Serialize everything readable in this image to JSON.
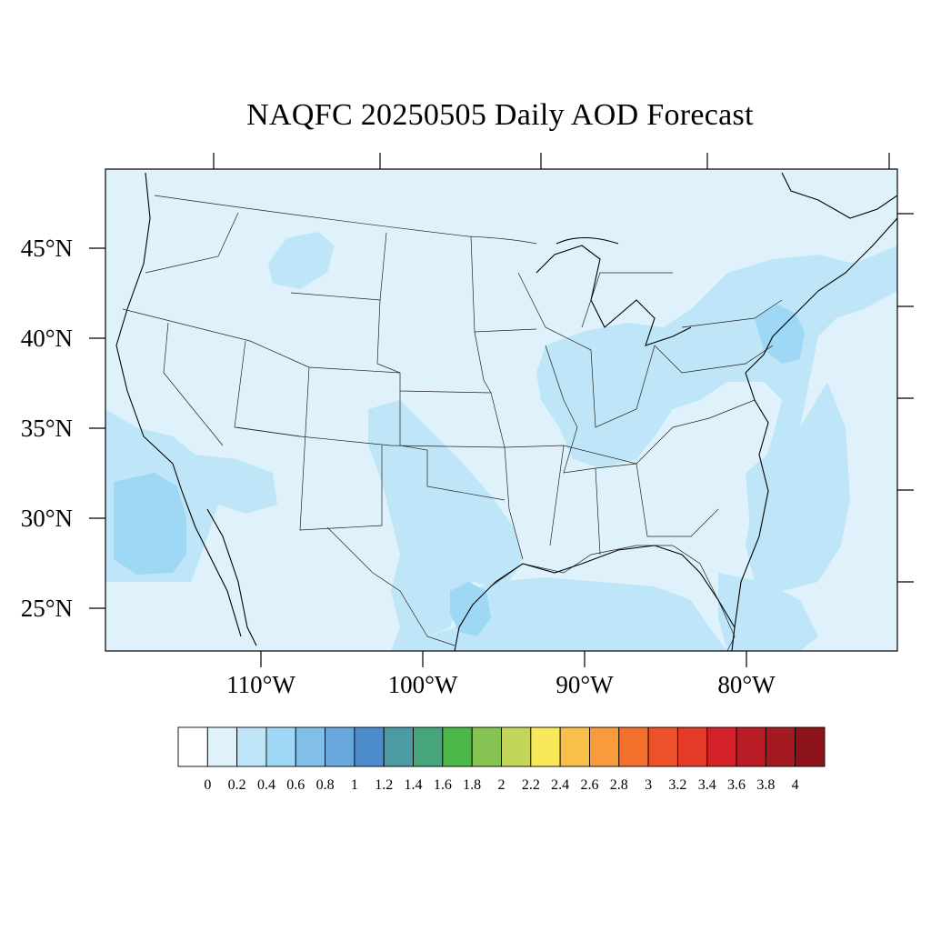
{
  "title": "NAQFC 20250505 Daily AOD Forecast",
  "map": {
    "background_color": "#dff2fb",
    "lon_labels": [
      "110°W",
      "100°W",
      "90°W",
      "80°W"
    ],
    "lat_labels": [
      "45°N",
      "40°N",
      "35°N",
      "30°N",
      "25°N"
    ]
  },
  "colorbar": {
    "colors": [
      "#ffffff",
      "#dff2fb",
      "#bfe6f8",
      "#9fd8f4",
      "#82bfe8",
      "#68a8dd",
      "#4d8ccc",
      "#4c9ba3",
      "#46a57a",
      "#4db84a",
      "#85c452",
      "#c4d65a",
      "#f8e85a",
      "#f8c04a",
      "#f79b3c",
      "#f36f2c",
      "#ec5129",
      "#e43a28",
      "#d42028",
      "#b91c24",
      "#a51921",
      "#8c141a"
    ],
    "labels": [
      "0",
      "0.2",
      "0.4",
      "0.6",
      "0.8",
      "1",
      "1.2",
      "1.4",
      "1.6",
      "1.8",
      "2",
      "2.2",
      "2.4",
      "2.6",
      "2.8",
      "3",
      "3.2",
      "3.4",
      "3.6",
      "3.8",
      "4"
    ]
  }
}
